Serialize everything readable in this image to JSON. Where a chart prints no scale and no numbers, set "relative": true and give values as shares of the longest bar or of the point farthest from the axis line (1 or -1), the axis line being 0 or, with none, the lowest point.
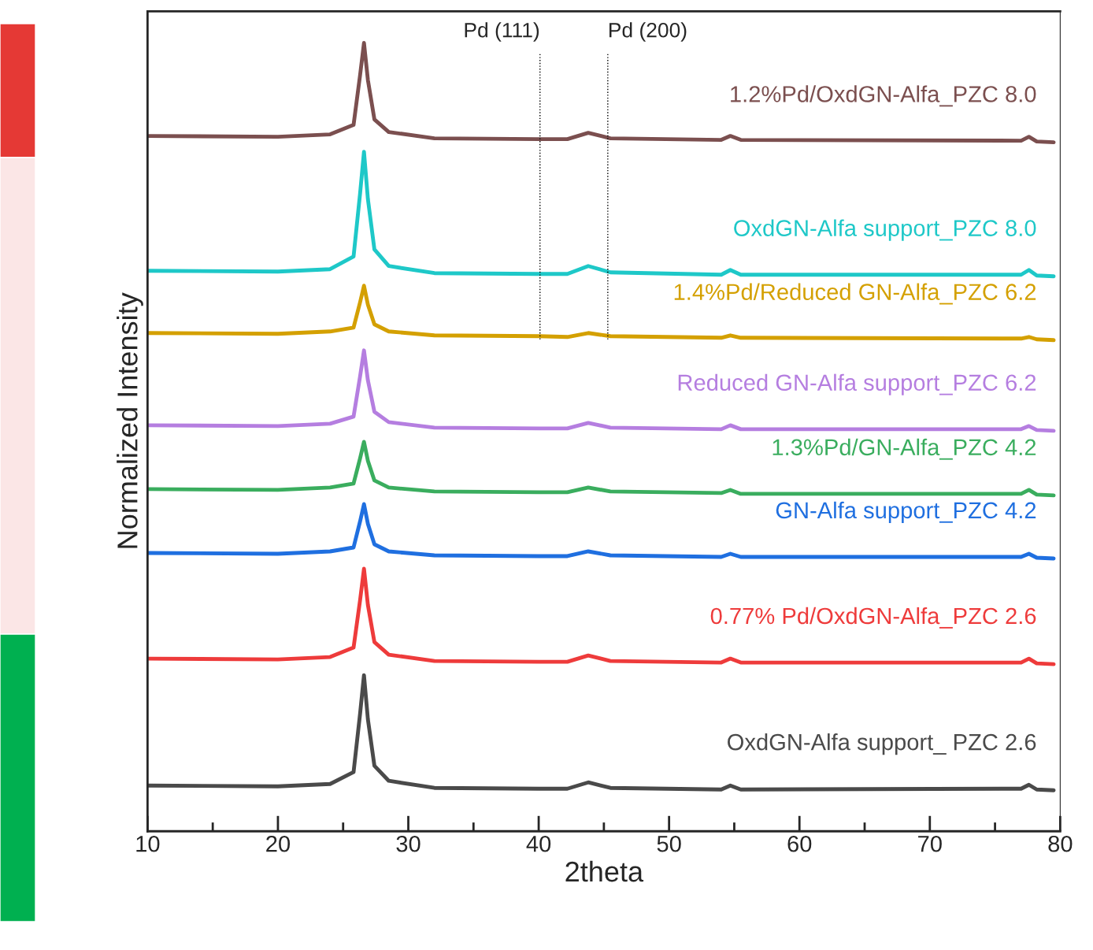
{
  "chart_data": {
    "type": "line",
    "xlabel": "2theta",
    "ylabel": "Normalized Intensity",
    "relative": true,
    "x": [
      10,
      20,
      24,
      25.8,
      26.3,
      26.6,
      26.9,
      27.4,
      28.5,
      32,
      40,
      42.2,
      43.8,
      45.5,
      54,
      54.7,
      55.5,
      77,
      77.6,
      78.2,
      79.5
    ],
    "series": [
      {
        "name": "OxdGN-Alfa support_ PZC 2.6",
        "color": "#4a4a4a",
        "values": [
          0.058,
          0.057,
          0.06,
          0.075,
          0.149,
          0.198,
          0.142,
          0.083,
          0.064,
          0.055,
          0.054,
          0.054,
          0.062,
          0.055,
          0.053,
          0.058,
          0.053,
          0.054,
          0.059,
          0.053,
          0.052
        ]
      },
      {
        "name": "0.77% Pd/OxdGN-Alfa_PZC 2.6",
        "color": "#ee3b3b",
        "values": [
          0.219,
          0.218,
          0.221,
          0.233,
          0.293,
          0.333,
          0.287,
          0.24,
          0.224,
          0.216,
          0.215,
          0.215,
          0.223,
          0.216,
          0.214,
          0.219,
          0.214,
          0.214,
          0.219,
          0.213,
          0.212
        ]
      },
      {
        "name": "GN-Alfa support_PZC 4.2",
        "color": "#1f6fe0",
        "values": [
          0.353,
          0.352,
          0.355,
          0.36,
          0.393,
          0.415,
          0.39,
          0.364,
          0.355,
          0.35,
          0.349,
          0.349,
          0.355,
          0.35,
          0.348,
          0.352,
          0.348,
          0.348,
          0.352,
          0.347,
          0.346
        ]
      },
      {
        "name": "1.3%Pd/GN-Alfa_PZC 4.2",
        "color": "#3aad5e",
        "values": [
          0.434,
          0.433,
          0.436,
          0.441,
          0.473,
          0.494,
          0.47,
          0.445,
          0.436,
          0.431,
          0.43,
          0.43,
          0.436,
          0.431,
          0.429,
          0.433,
          0.428,
          0.428,
          0.433,
          0.427,
          0.426
        ]
      },
      {
        "name": "Reduced GN-Alfa support_PZC 6.2",
        "color": "#b57ee0",
        "values": [
          0.515,
          0.514,
          0.517,
          0.526,
          0.577,
          0.61,
          0.572,
          0.532,
          0.519,
          0.512,
          0.511,
          0.511,
          0.518,
          0.512,
          0.51,
          0.515,
          0.51,
          0.51,
          0.514,
          0.509,
          0.508
        ]
      },
      {
        "name": "1.4%Pd/Reduced GN-Alfa_PZC 6.2",
        "color": "#d4a000",
        "values": [
          0.632,
          0.631,
          0.634,
          0.639,
          0.671,
          0.692,
          0.668,
          0.643,
          0.634,
          0.629,
          0.628,
          0.627,
          0.632,
          0.628,
          0.626,
          0.629,
          0.626,
          0.625,
          0.627,
          0.624,
          0.623
        ]
      },
      {
        "name": "OxdGN-Alfa support_PZC 8.0",
        "color": "#1ec8c8",
        "values": [
          0.711,
          0.71,
          0.713,
          0.729,
          0.809,
          0.862,
          0.802,
          0.738,
          0.717,
          0.708,
          0.707,
          0.707,
          0.717,
          0.709,
          0.706,
          0.712,
          0.706,
          0.706,
          0.712,
          0.705,
          0.704
        ]
      },
      {
        "name": "1.2%Pd/OxdGN-Alfa_PZC 8.0",
        "color": "#7b4f4f",
        "values": [
          0.882,
          0.881,
          0.884,
          0.896,
          0.959,
          1.0,
          0.953,
          0.903,
          0.887,
          0.879,
          0.878,
          0.878,
          0.886,
          0.879,
          0.877,
          0.882,
          0.877,
          0.876,
          0.881,
          0.875,
          0.874
        ]
      }
    ],
    "xlim": [
      10,
      80
    ],
    "xticks": [
      10,
      {
        "value": 15,
        "label": null
      },
      20,
      {
        "value": 25,
        "label": null
      },
      30,
      {
        "value": 35,
        "label": null
      },
      40,
      {
        "value": 45,
        "label": null
      },
      50,
      {
        "value": 55,
        "label": null
      },
      60,
      {
        "value": 65,
        "label": null
      },
      70,
      {
        "value": 75,
        "label": null
      },
      80
    ],
    "ref_lines": [
      {
        "axis": "x",
        "value": 40.1,
        "label": "Pd (111)",
        "color": "#000000",
        "line_style": "dotted"
      },
      {
        "axis": "x",
        "value": 45.3,
        "label": "Pd (200)",
        "color": "#000000",
        "line_style": "dotted"
      }
    ],
    "grid": false,
    "legend": false,
    "marker": "none",
    "line_style": "solid"
  }
}
